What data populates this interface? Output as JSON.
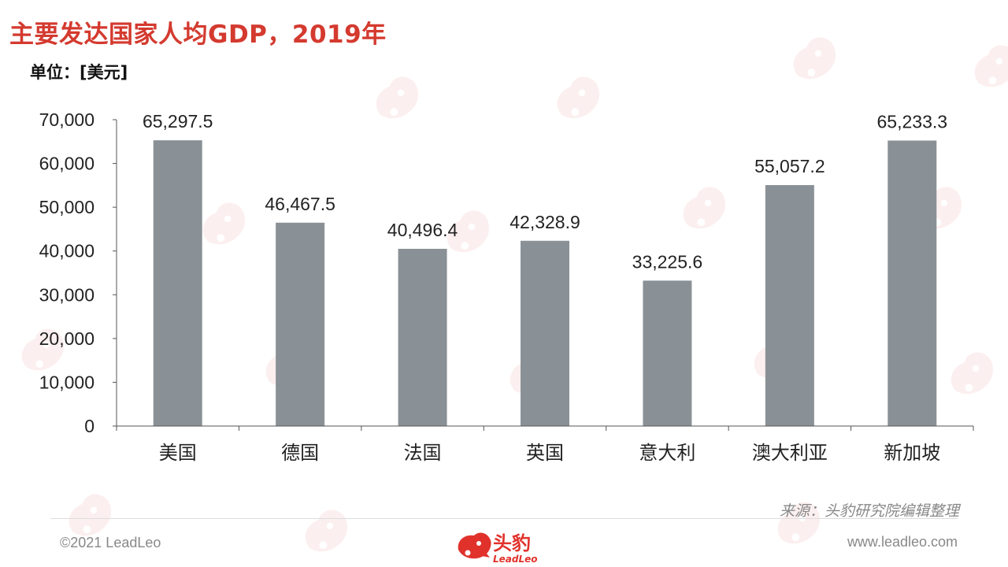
{
  "header": {
    "title": "主要发达国家人均GDP，2019年",
    "unit": "单位：[美元]"
  },
  "footer": {
    "source": "来源：头豹研究院编辑整理",
    "copyright": "©2021 LeadLeo",
    "website": "www.leadleo.com",
    "logo_text": "头豹",
    "logo_subtext": "LeadLeo"
  },
  "colors": {
    "title": "#d43a2f",
    "bar": "#8a9196",
    "axis": "#555555",
    "brand": "#e0322b"
  },
  "chart_data": {
    "type": "bar",
    "title": "主要发达国家人均GDP，2019年",
    "ylabel": "单位：[美元]",
    "categories": [
      "美国",
      "德国",
      "法国",
      "英国",
      "意大利",
      "澳大利亚",
      "新加坡"
    ],
    "values": [
      65297.5,
      46467.5,
      40496.4,
      42328.9,
      33225.6,
      55057.2,
      65233.3
    ],
    "data_labels": [
      "65,297.5",
      "46,467.5",
      "40,496.4",
      "42,328.9",
      "33,225.6",
      "55,057.2",
      "65,233.3"
    ],
    "ylim": [
      0,
      70000
    ],
    "yticks": [
      0,
      10000,
      20000,
      30000,
      40000,
      50000,
      60000,
      70000
    ],
    "ytick_labels": [
      "0",
      "10,000",
      "20,000",
      "30,000",
      "40,000",
      "50,000",
      "60,000",
      "70,000"
    ],
    "grid": false,
    "legend": "none"
  }
}
